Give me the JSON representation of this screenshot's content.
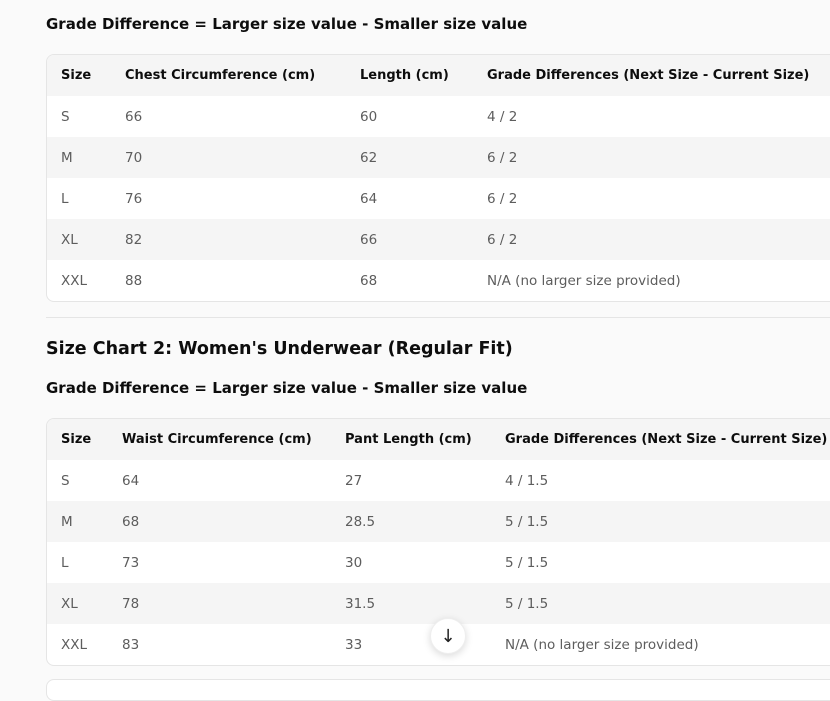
{
  "chart1": {
    "formula": "Grade Difference = Larger size value - Smaller size value",
    "headers": [
      "Size",
      "Chest Circumference (cm)",
      "Length (cm)",
      "Grade Differences (Next Size - Current Size)"
    ],
    "rows": [
      [
        "S",
        "66",
        "60",
        "4 / 2"
      ],
      [
        "M",
        "70",
        "62",
        "6 / 2"
      ],
      [
        "L",
        "76",
        "64",
        "6 / 2"
      ],
      [
        "XL",
        "82",
        "66",
        "6 / 2"
      ],
      [
        "XXL",
        "88",
        "68",
        "N/A (no larger size provided)"
      ]
    ]
  },
  "chart2": {
    "title": "Size Chart 2: Women's Underwear (Regular Fit)",
    "formula": "Grade Difference = Larger size value - Smaller size value",
    "headers": [
      "Size",
      "Waist Circumference (cm)",
      "Pant Length (cm)",
      "Grade Differences (Next Size - Current Size)"
    ],
    "rows": [
      [
        "S",
        "64",
        "27",
        "4 / 1.5"
      ],
      [
        "M",
        "68",
        "28.5",
        "5 / 1.5"
      ],
      [
        "L",
        "73",
        "30",
        "5 / 1.5"
      ],
      [
        "XL",
        "78",
        "31.5",
        "5 / 1.5"
      ],
      [
        "XXL",
        "83",
        "33",
        "N/A (no larger size provided)"
      ]
    ]
  },
  "scroll_button": {
    "icon": "arrow-down-icon",
    "glyph": "↓"
  }
}
